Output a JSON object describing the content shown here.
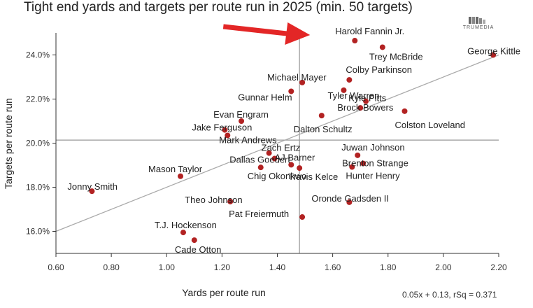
{
  "title": "Tight end yards and targets per route run in 2025 (min. 50 targets)",
  "logo": {
    "icon": "trumedia-logo-icon",
    "text": "TRUMEDIA"
  },
  "fit_equation": "0.05x + 0.13, rSq = 0.371",
  "colors": {
    "point": "#b22222",
    "arrow": "#e32626",
    "fit_line": "#aaaaaa",
    "ref_line": "#999999",
    "axis": "#333333"
  },
  "chart_data": {
    "type": "scatter",
    "title": "Tight end yards and targets per route run in 2025 (min. 50 targets)",
    "xlabel": "Yards per route run",
    "ylabel": "Targets per route run",
    "xlim": [
      0.6,
      2.2
    ],
    "ylim": [
      0.15,
      0.25
    ],
    "xticks": [
      0.6,
      0.8,
      1.0,
      1.2,
      1.4,
      1.6,
      1.8,
      2.0,
      2.2
    ],
    "xtick_labels": [
      "0.60",
      "0.80",
      "1.00",
      "1.20",
      "1.40",
      "1.60",
      "1.80",
      "2.00",
      "2.20"
    ],
    "yticks": [
      0.16,
      0.18,
      0.2,
      0.22,
      0.24
    ],
    "ytick_labels": [
      "16.0%",
      "18.0%",
      "20.0%",
      "22.0%",
      "24.0%"
    ],
    "grid": false,
    "reference_lines": {
      "x": 1.48,
      "y": 0.2014
    },
    "fit": {
      "slope": 0.05,
      "intercept": 0.13,
      "r_squared": 0.371
    },
    "highlight": "Harold Fannin Jr.",
    "points": [
      {
        "name": "Harold Fannin Jr.",
        "x": 1.68,
        "y": 0.2465
      },
      {
        "name": "Trey McBride",
        "x": 1.78,
        "y": 0.2435
      },
      {
        "name": "George Kittle",
        "x": 2.18,
        "y": 0.24
      },
      {
        "name": "Colby Parkinson",
        "x": 1.66,
        "y": 0.2287
      },
      {
        "name": "Michael Mayer",
        "x": 1.49,
        "y": 0.2275
      },
      {
        "name": "Gunnar Helm",
        "x": 1.45,
        "y": 0.2235
      },
      {
        "name": "Tyler Warren",
        "x": 1.64,
        "y": 0.224
      },
      {
        "name": "Kyle Pitts",
        "x": 1.72,
        "y": 0.219
      },
      {
        "name": "Brock Bowers",
        "x": 1.7,
        "y": 0.216
      },
      {
        "name": "Colston Loveland",
        "x": 1.86,
        "y": 0.2145
      },
      {
        "name": "Dalton Schultz",
        "x": 1.56,
        "y": 0.2125
      },
      {
        "name": "Evan Engram",
        "x": 1.27,
        "y": 0.21
      },
      {
        "name": "Jake Ferguson",
        "x": 1.21,
        "y": 0.206
      },
      {
        "name": "Mark Andrews",
        "x": 1.22,
        "y": 0.2035
      },
      {
        "name": "Zach Ertz",
        "x": 1.37,
        "y": 0.1955
      },
      {
        "name": "Juwan Johnson",
        "x": 1.69,
        "y": 0.1945
      },
      {
        "name": "AJ Barner",
        "x": 1.39,
        "y": 0.193
      },
      {
        "name": "Dallas Goedert",
        "x": 1.45,
        "y": 0.1902
      },
      {
        "name": "Brenton Strange",
        "x": 1.71,
        "y": 0.1908
      },
      {
        "name": "Chig Okonkwo",
        "x": 1.34,
        "y": 0.189
      },
      {
        "name": "Travis Kelce",
        "x": 1.48,
        "y": 0.1887
      },
      {
        "name": "Hunter Henry",
        "x": 1.67,
        "y": 0.1892
      },
      {
        "name": "Mason Taylor",
        "x": 1.05,
        "y": 0.185
      },
      {
        "name": "Jonny Smith",
        "x": 0.73,
        "y": 0.1782
      },
      {
        "name": "Theo Johnson",
        "x": 1.23,
        "y": 0.1735
      },
      {
        "name": "Oronde Gadsden II",
        "x": 1.66,
        "y": 0.1732
      },
      {
        "name": "Pat Freiermuth",
        "x": 1.49,
        "y": 0.1665
      },
      {
        "name": "T.J. Hockenson",
        "x": 1.06,
        "y": 0.1595
      },
      {
        "name": "Cade Otton",
        "x": 1.1,
        "y": 0.156
      }
    ]
  }
}
